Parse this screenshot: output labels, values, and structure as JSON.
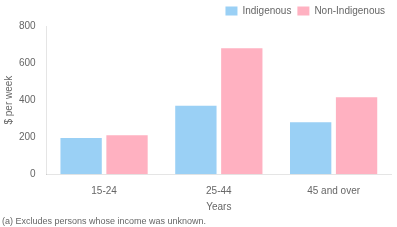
{
  "chart_data": {
    "type": "bar",
    "categories": [
      "15-24",
      "25-44",
      "45 and over"
    ],
    "series": [
      {
        "name": "Indigenous",
        "values": [
          195,
          370,
          280
        ]
      },
      {
        "name": "Non-Indigenous",
        "values": [
          210,
          680,
          415
        ]
      }
    ],
    "xlabel": "Years",
    "ylabel": "$ per week",
    "footnote": "(a) Excludes persons whose income was unknown.",
    "ylim": [
      0,
      800
    ],
    "yticks": [
      0,
      200,
      400,
      600,
      800
    ],
    "grid": false,
    "legend": "upper right"
  }
}
